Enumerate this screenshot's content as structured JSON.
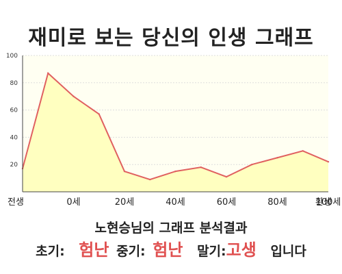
{
  "title": "재미로 보는 당신의 인생 그래프",
  "chart_data": {
    "type": "area",
    "title": "재미로 보는 당신의 인생 그래프",
    "xlabel": "",
    "ylabel": "",
    "ylim": [
      0,
      100
    ],
    "yticks": [
      "20",
      "40",
      "60",
      "80",
      "100"
    ],
    "x_tick_labels": [
      "전생",
      "0세",
      "20세",
      "40세",
      "60세",
      "80세",
      "100세",
      "환생"
    ],
    "x": [
      -10,
      0,
      10,
      20,
      30,
      40,
      50,
      60,
      70,
      80,
      90,
      100,
      110
    ],
    "values": [
      17,
      87,
      70,
      57,
      15,
      9,
      15,
      18,
      11,
      20,
      25,
      30,
      22
    ],
    "grid": true,
    "legend": "none",
    "fill_color": "#ffffc0",
    "line_color": "#e06060",
    "plot_bg": "#fffff2"
  },
  "subtitle": "노현승님의 그래프 분석결과",
  "summary": {
    "early_label": "초기:",
    "early_value": "험난",
    "middle_label": "중기:",
    "middle_value": "험난",
    "late_label": "말기:",
    "late_value": "고생",
    "ending": "입니다"
  },
  "colors": {
    "accent": "#e05050"
  }
}
